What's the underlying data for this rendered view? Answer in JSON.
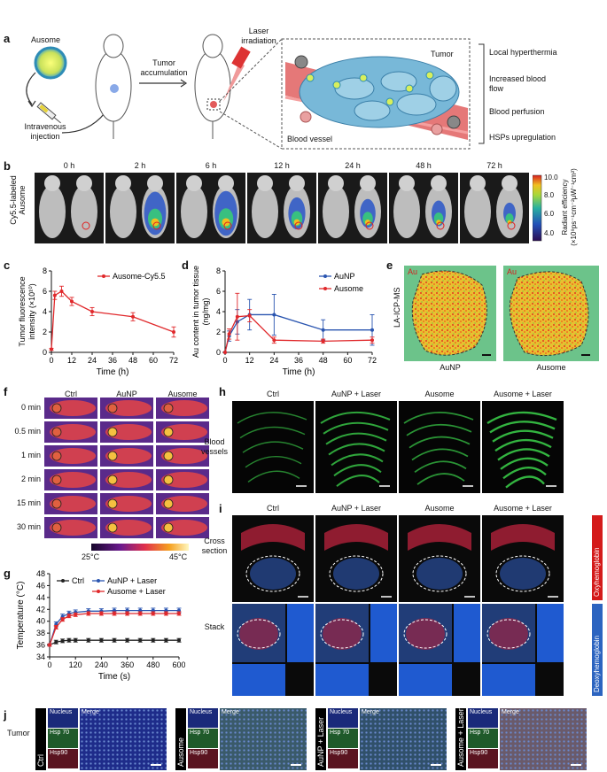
{
  "panel_letters": [
    "a",
    "b",
    "c",
    "d",
    "e",
    "f",
    "g",
    "h",
    "i",
    "j"
  ],
  "a": {
    "ausome": "Ausome",
    "iv_line1": "Intravenous",
    "iv_line2": "injection",
    "tumor_acc_line1": "Tumor",
    "tumor_acc_line2": "accumulation",
    "laser_line1": "Laser",
    "laser_line2": "irradiation",
    "tumor": "Tumor",
    "blood_vessel": "Blood vessel",
    "effects": [
      "Local hyperthermia",
      "Increased blood flow",
      "Blood perfusion",
      "HSPs upregulation"
    ]
  },
  "b": {
    "ylabel_line1": "Cy5.5-labeled",
    "ylabel_line2": "Ausome",
    "timepoints": [
      "0 h",
      "2 h",
      "6 h",
      "12 h",
      "24 h",
      "48 h",
      "72 h"
    ],
    "colorbar_ticks": [
      "10.0",
      "8.0",
      "6.0",
      "4.0"
    ],
    "colorbar_label_line1": "Radiant efficiency",
    "colorbar_label_line2": "(×10⁹ps⁻¹cm⁻²μW⁻¹cm²)"
  },
  "e": {
    "element": "Au",
    "method": "LA-ICP-MS",
    "samples": [
      "AuNP",
      "Ausome"
    ]
  },
  "f": {
    "columns": [
      "Ctrl",
      "AuNP",
      "Ausome"
    ],
    "rows": [
      "0 min",
      "0.5 min",
      "1 min",
      "2 min",
      "15 min",
      "30 min"
    ],
    "scale_min": "25°C",
    "scale_max": "45°C"
  },
  "h": {
    "columns": [
      "Ctrl",
      "AuNP + Laser",
      "Ausome",
      "Ausome + Laser"
    ],
    "row_label_line1": "Blood",
    "row_label_line2": "vessels"
  },
  "i": {
    "columns": [
      "Ctrl",
      "AuNP + Laser",
      "Ausome",
      "Ausome + Laser"
    ],
    "row1_line1": "Cross",
    "row1_line2": "section",
    "row2": "Stack",
    "oxy": "Oxyhemoglobin",
    "deoxy": "Deoxyhemoglobin"
  },
  "j": {
    "tumor": "Tumor",
    "groups": [
      "Ctrl",
      "Ausome",
      "AuNP + Laser",
      "Ausome + Laser"
    ],
    "channels": [
      "Nucleus",
      "Hsp 70",
      "Hsp90"
    ],
    "merge": "Merge"
  },
  "chart_data": [
    {
      "id": "c",
      "type": "line",
      "xlabel": "Time (h)",
      "ylabel": "Tumor fluorescence intensity (×10¹⁰)",
      "xlim": [
        0,
        72
      ],
      "ylim": [
        0,
        8
      ],
      "xticks": [
        0,
        12,
        24,
        36,
        48,
        60,
        72
      ],
      "yticks": [
        0,
        2,
        4,
        6,
        8
      ],
      "legend": "top-right",
      "series": [
        {
          "name": "Ausome-Cy5.5",
          "color": "#e0282b",
          "x": [
            0,
            2,
            6,
            12,
            24,
            48,
            72
          ],
          "y": [
            0.3,
            5.6,
            6.0,
            5.0,
            4.0,
            3.5,
            2.0
          ],
          "err": [
            0.1,
            0.4,
            0.5,
            0.4,
            0.4,
            0.4,
            0.5
          ]
        }
      ]
    },
    {
      "id": "d",
      "type": "line",
      "xlabel": "Time (h)",
      "ylabel": "Au content in tumor tissue (ng/mg)",
      "xlim": [
        0,
        72
      ],
      "ylim": [
        0,
        8
      ],
      "xticks": [
        0,
        12,
        24,
        36,
        48,
        60,
        72
      ],
      "yticks": [
        0,
        2,
        4,
        6,
        8
      ],
      "legend": "top-right",
      "series": [
        {
          "name": "AuNP",
          "color": "#2a55b0",
          "x": [
            0,
            2,
            6,
            12,
            24,
            48,
            72
          ],
          "y": [
            0,
            1.6,
            3.0,
            3.7,
            3.7,
            2.2,
            2.2
          ],
          "err": [
            0,
            0.5,
            1.2,
            1.5,
            2.0,
            1.0,
            1.5
          ]
        },
        {
          "name": "Ausome",
          "color": "#e0282b",
          "x": [
            0,
            2,
            6,
            12,
            24,
            48,
            72
          ],
          "y": [
            0,
            1.8,
            3.5,
            3.6,
            1.2,
            1.1,
            1.2
          ],
          "err": [
            0,
            0.5,
            2.3,
            0.6,
            0.3,
            0.2,
            0.3
          ]
        }
      ]
    },
    {
      "id": "g",
      "type": "line",
      "xlabel": "Time (s)",
      "ylabel": "Temperature (°C)",
      "xlim": [
        0,
        600
      ],
      "ylim": [
        34,
        48
      ],
      "xticks": [
        0,
        120,
        240,
        360,
        480,
        600
      ],
      "yticks": [
        34,
        36,
        38,
        40,
        42,
        44,
        46,
        48
      ],
      "legend": "top",
      "series": [
        {
          "name": "Ctrl",
          "color": "#222222",
          "x": [
            0,
            30,
            60,
            90,
            120,
            180,
            240,
            300,
            360,
            420,
            480,
            540,
            600
          ],
          "y": [
            36.0,
            36.5,
            36.7,
            36.8,
            36.8,
            36.8,
            36.8,
            36.8,
            36.8,
            36.8,
            36.8,
            36.8,
            36.8
          ],
          "err": [
            0.2,
            0.3,
            0.3,
            0.3,
            0.3,
            0.3,
            0.3,
            0.3,
            0.3,
            0.3,
            0.3,
            0.3,
            0.3
          ]
        },
        {
          "name": "AuNP + Laser",
          "color": "#2a55b0",
          "x": [
            0,
            30,
            60,
            90,
            120,
            180,
            240,
            300,
            360,
            420,
            480,
            540,
            600
          ],
          "y": [
            36.0,
            39.5,
            40.8,
            41.3,
            41.5,
            41.7,
            41.7,
            41.8,
            41.8,
            41.8,
            41.8,
            41.8,
            41.8
          ],
          "err": [
            0.2,
            0.4,
            0.4,
            0.4,
            0.4,
            0.4,
            0.4,
            0.4,
            0.4,
            0.4,
            0.4,
            0.4,
            0.4
          ]
        },
        {
          "name": "Ausome + Laser",
          "color": "#e0282b",
          "x": [
            0,
            30,
            60,
            90,
            120,
            180,
            240,
            300,
            360,
            420,
            480,
            540,
            600
          ],
          "y": [
            36.0,
            39.0,
            40.3,
            40.9,
            41.1,
            41.3,
            41.3,
            41.3,
            41.3,
            41.3,
            41.3,
            41.3,
            41.3
          ],
          "err": [
            0.2,
            0.3,
            0.3,
            0.3,
            0.3,
            0.3,
            0.3,
            0.3,
            0.3,
            0.3,
            0.3,
            0.3,
            0.3
          ]
        }
      ]
    }
  ]
}
